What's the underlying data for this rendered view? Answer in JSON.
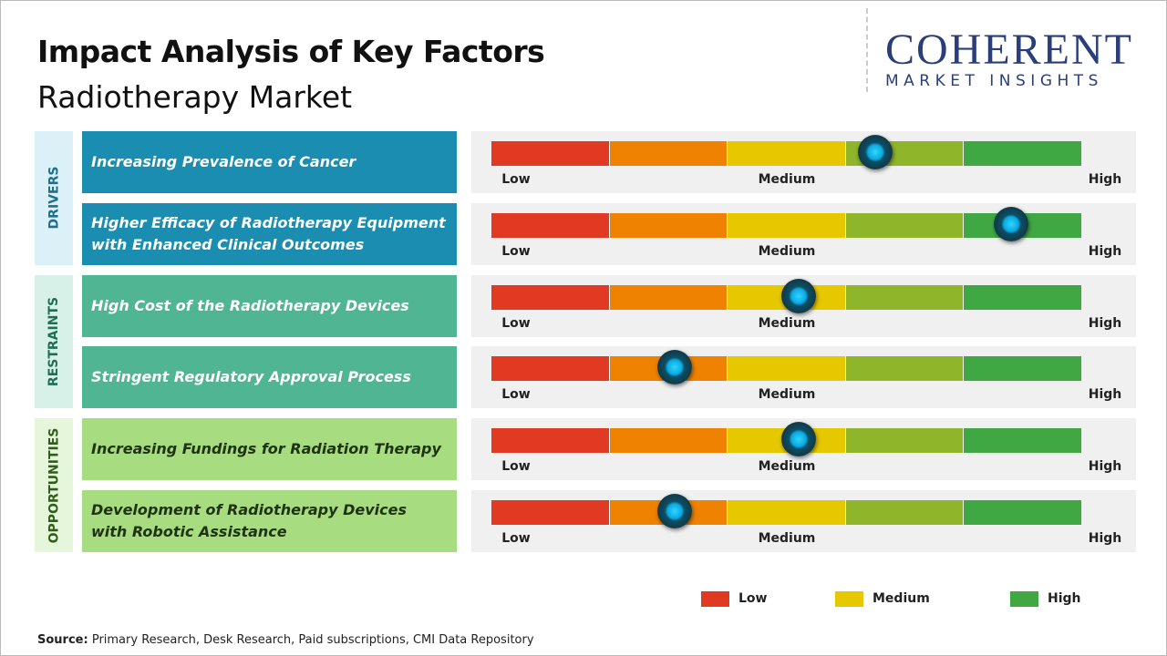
{
  "header": {
    "title": "Impact Analysis of Key Factors",
    "subtitle": "Radiotherapy Market",
    "logo": {
      "name": "COHERENT",
      "tagline": "MARKET INSIGHTS"
    }
  },
  "chart_data": {
    "type": "impact",
    "groups": [
      {
        "name": "DRIVERS",
        "color": "#1a8db1",
        "panel_color": "#dcf0f8",
        "label_color": "#1d6f92",
        "text_color": "#ffffff",
        "categories": [
          "Increasing Prevalence  of Cancer",
          "Higher Efficacy of Radiotherapy  Equipment with Enhanced  Clinical  Outcomes"
        ],
        "values": [
          3.25,
          4.4
        ]
      },
      {
        "name": "RESTRAINTS",
        "color": "#4fb593",
        "panel_color": "#d8f1e8",
        "label_color": "#1f6e55",
        "text_color": "#ffffff",
        "categories": [
          "High Cost of the Radiotherapy  Devices",
          "Stringent  Regulatory  Approval  Process"
        ],
        "values": [
          2.6,
          1.55
        ]
      },
      {
        "name": "OPPORTUNITIES",
        "color": "#a8dc80",
        "panel_color": "#e6f6da",
        "label_color": "#2f5e1a",
        "text_color": "#1e3312",
        "categories": [
          "Increasing Fundings for Radiation Therapy",
          "Development  of Radiotherapy  Devices  with Robotic Assistance"
        ],
        "values": [
          2.6,
          1.55
        ]
      }
    ],
    "xlim": [
      0,
      5
    ],
    "xticks": [
      {
        "value": 0,
        "label": "Low"
      },
      {
        "value": 2.5,
        "label": "Medium"
      },
      {
        "value": 5,
        "label": "High"
      }
    ],
    "colors": [
      "#e03a22",
      "#ef8200",
      "#e6c800",
      "#8fb52a",
      "#3fa843"
    ],
    "legend": [
      {
        "name": "Low",
        "color": "#e03a22"
      },
      {
        "name": "Medium",
        "color": "#e6c800"
      },
      {
        "name": "High",
        "color": "#3fa843"
      }
    ]
  },
  "footer": {
    "source_label": "Source:",
    "source": "Primary Research, Desk Research, Paid subscriptions, CMI Data Repository"
  }
}
